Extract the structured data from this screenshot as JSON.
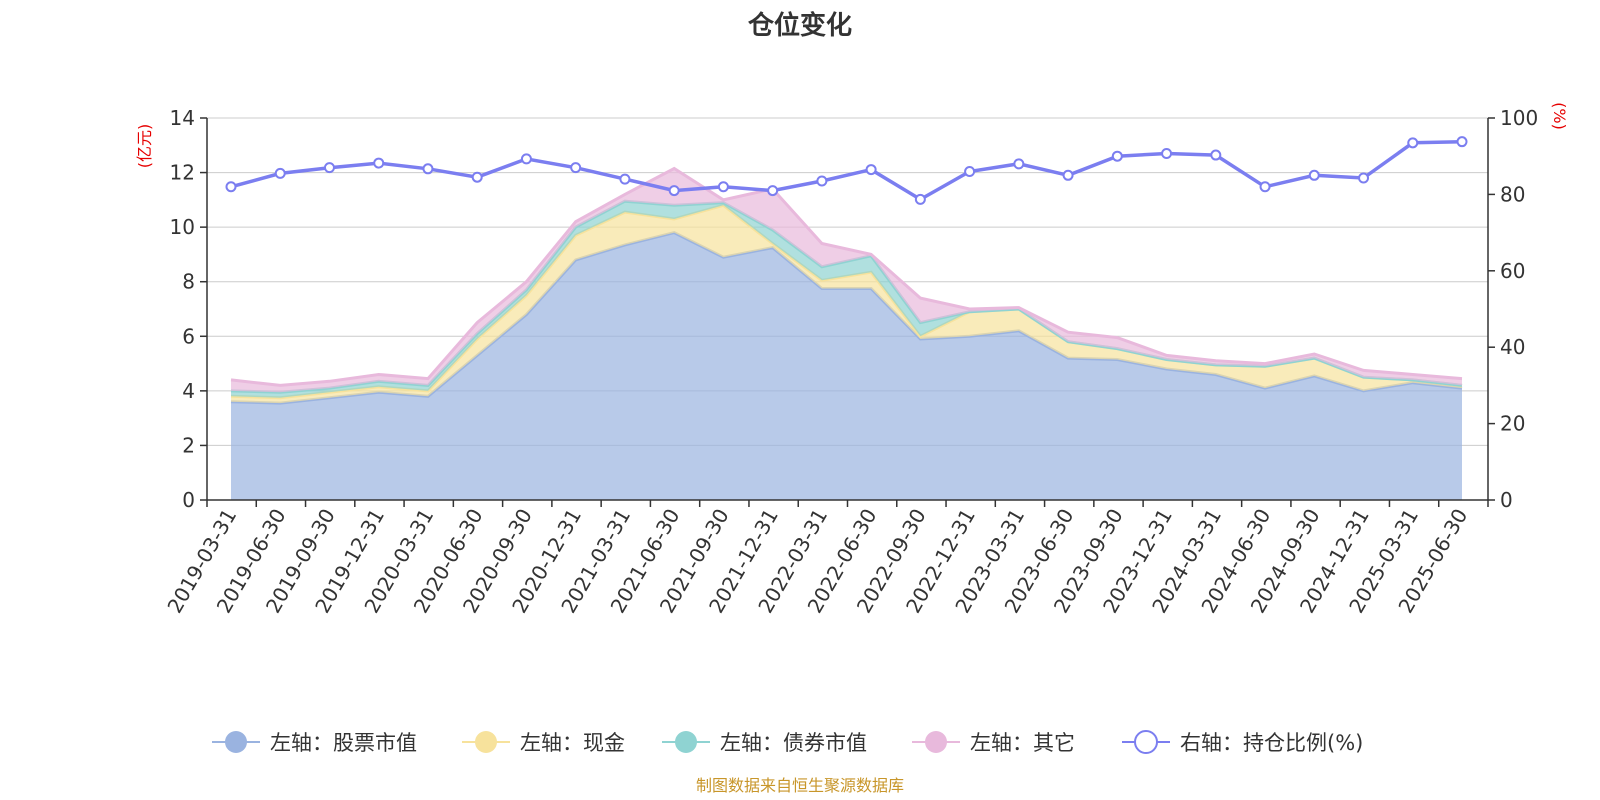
{
  "chart_data": {
    "type": "area",
    "title": "仓位变化",
    "left_axis": {
      "unit": "(亿元)",
      "ylim": [
        0,
        14
      ],
      "ticks": [
        0,
        2,
        4,
        6,
        8,
        10,
        12,
        14
      ]
    },
    "right_axis": {
      "unit": "(%)",
      "ylim": [
        0,
        100
      ],
      "ticks": [
        0,
        20,
        40,
        60,
        80,
        100
      ]
    },
    "grid": true,
    "legend_position": "bottom",
    "x_labels": [
      "2019-03-31",
      "2019-06-30",
      "2019-09-30",
      "2019-12-31",
      "2020-03-31",
      "2020-06-30",
      "2020-09-30",
      "2020-12-31",
      "2021-03-31",
      "2021-06-30",
      "2021-09-30",
      "2021-12-31",
      "2022-03-31",
      "2022-06-30",
      "2022-09-30",
      "2022-12-31",
      "2023-03-31",
      "2023-06-30",
      "2023-09-30",
      "2023-12-31",
      "2024-03-31",
      "2024-06-30",
      "2024-09-30",
      "2024-12-31",
      "2025-03-31",
      "2025-06-30"
    ],
    "x": [
      "2019-03-31",
      "2019-06-30",
      "2019-09-30",
      "2019-12-31",
      "2020-03-31",
      "2020-06-30",
      "2020-09-30",
      "2020-12-31",
      "2021-03-31",
      "2021-06-30",
      "2021-09-30",
      "2021-12-31",
      "2022-03-31",
      "2022-06-30",
      "2022-09-30",
      "2022-12-31",
      "2023-03-31",
      "2023-06-30",
      "2023-09-30",
      "2023-12-31",
      "2024-03-31",
      "2024-06-30",
      "2024-09-30",
      "2024-12-31",
      "2025-03-31",
      "2025-06-30"
    ],
    "series": [
      {
        "name": "左轴：股票市值",
        "axis": "left",
        "kind": "stack",
        "color": "#9ab3e0",
        "values": [
          3.6,
          3.55,
          3.75,
          3.95,
          3.8,
          5.3,
          6.8,
          8.8,
          9.35,
          9.8,
          8.9,
          9.25,
          7.75,
          7.75,
          5.9,
          6.0,
          6.2,
          5.2,
          5.15,
          4.8,
          4.6,
          4.1,
          4.55,
          4.0,
          4.3,
          4.1
        ]
      },
      {
        "name": "左轴：现金",
        "axis": "left",
        "kind": "stack",
        "color": "#f7e29c",
        "values": [
          0.2,
          0.2,
          0.2,
          0.2,
          0.2,
          0.6,
          0.7,
          0.9,
          1.2,
          0.5,
          1.9,
          0.15,
          0.3,
          0.6,
          0.1,
          0.9,
          0.8,
          0.6,
          0.4,
          0.35,
          0.35,
          0.8,
          0.65,
          0.5,
          0.1,
          0.1
        ]
      },
      {
        "name": "左轴：债券市值",
        "axis": "left",
        "kind": "stack",
        "color": "#8fd3d2",
        "values": [
          0.2,
          0.2,
          0.15,
          0.2,
          0.2,
          0.2,
          0.2,
          0.3,
          0.4,
          0.5,
          0.1,
          0.5,
          0.5,
          0.6,
          0.5,
          0.0,
          0.0,
          0.0,
          0.0,
          0.0,
          0.0,
          0.0,
          0.0,
          0.0,
          0.0,
          0.0
        ]
      },
      {
        "name": "左轴：其它",
        "axis": "left",
        "kind": "stack",
        "color": "#e8b9dc",
        "values": [
          0.4,
          0.25,
          0.25,
          0.25,
          0.25,
          0.4,
          0.3,
          0.2,
          0.25,
          1.35,
          0.1,
          1.5,
          0.85,
          0.05,
          0.9,
          0.1,
          0.05,
          0.35,
          0.4,
          0.15,
          0.15,
          0.1,
          0.15,
          0.25,
          0.2,
          0.25
        ]
      },
      {
        "name": "右轴：持仓比例(%)",
        "axis": "right",
        "kind": "line",
        "color": "#7b7ef0",
        "values": [
          82.0,
          85.5,
          87.0,
          88.2,
          86.7,
          84.5,
          89.3,
          87.0,
          84.0,
          81.0,
          82.0,
          81.0,
          83.5,
          86.5,
          78.7,
          86.0,
          88.0,
          85.0,
          90.0,
          90.7,
          90.3,
          82.0,
          85.0,
          84.3,
          93.5,
          93.8
        ]
      }
    ],
    "source": "制图数据来自恒生聚源数据库"
  }
}
